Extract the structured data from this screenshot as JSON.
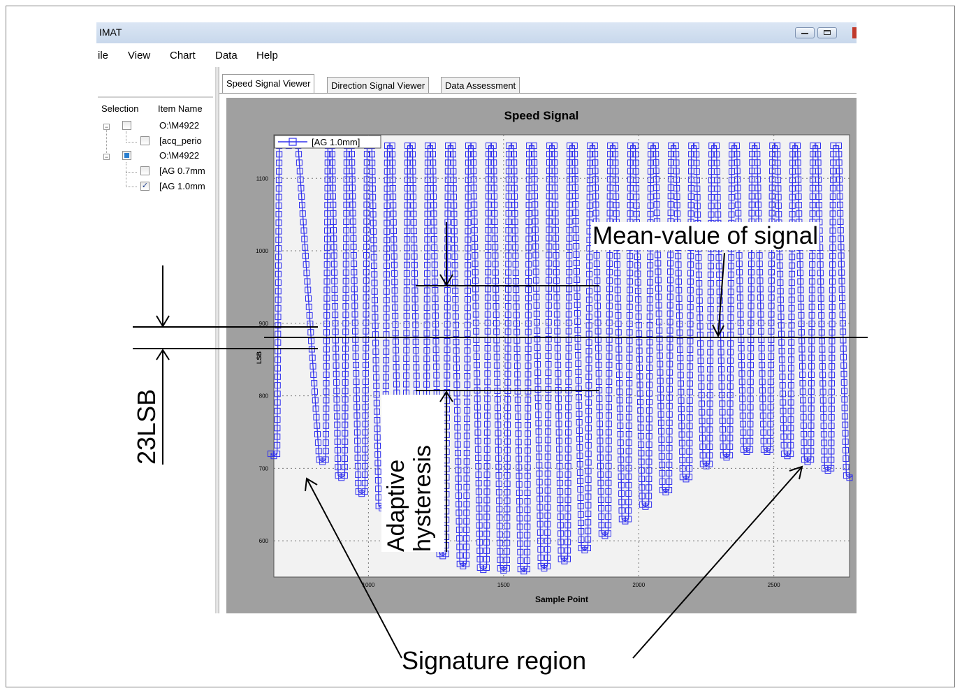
{
  "window": {
    "title": "IMAT"
  },
  "menu": [
    "ile",
    "View",
    "Chart",
    "Data",
    "Help"
  ],
  "tree": {
    "headers": {
      "selection": "Selection",
      "item_name": "Item Name"
    },
    "items": [
      {
        "label": "O:\\M4922",
        "level": 0,
        "checked": "unchecked"
      },
      {
        "label": "[acq_perio",
        "level": 1,
        "checked": "unchecked"
      },
      {
        "label": "O:\\M4922",
        "level": 0,
        "checked": "partial"
      },
      {
        "label": "[AG 0.7mm",
        "level": 1,
        "checked": "unchecked"
      },
      {
        "label": "[AG 1.0mm",
        "level": 1,
        "checked": "checked"
      }
    ]
  },
  "tabs": [
    "Speed Signal Viewer",
    "Direction Signal Viewer",
    "Data Assessment"
  ],
  "active_tab": 0,
  "chart_data": {
    "type": "line",
    "title": "Speed Signal",
    "xlabel": "Sample Point",
    "ylabel": "LSB",
    "xlim": [
      650,
      2780
    ],
    "ylim": [
      550,
      1160
    ],
    "xticks": [
      1000,
      1500,
      2000,
      2500
    ],
    "yticks": [
      600,
      700,
      800,
      900,
      1000,
      1100
    ],
    "grid": true,
    "legend_position": "top-left",
    "series": [
      {
        "name": "[AG 1.0mm]",
        "color": "#3030ee",
        "marker": "square",
        "peak": 1145,
        "trough_x": [
          650,
          830,
          900,
          975,
          1050,
          1125,
          1200,
          1275,
          1350,
          1425,
          1500,
          1575,
          1650,
          1725,
          1800,
          1875,
          1950,
          2025,
          2100,
          2175,
          2250,
          2325,
          2400,
          2475,
          2550,
          2625,
          2700,
          2780
        ],
        "trough_y": [
          720,
          712,
          690,
          668,
          648,
          628,
          604,
          582,
          568,
          563,
          562,
          561,
          565,
          575,
          590,
          610,
          630,
          650,
          670,
          688,
          706,
          718,
          726,
          726,
          720,
          712,
          700,
          690
        ]
      }
    ]
  },
  "annotations": {
    "mean_value": "Mean-value of signal",
    "hysteresis_line1": "Adaptive",
    "hysteresis_line2": "hysteresis",
    "lsb": "23LSB",
    "signature": "Signature region"
  }
}
